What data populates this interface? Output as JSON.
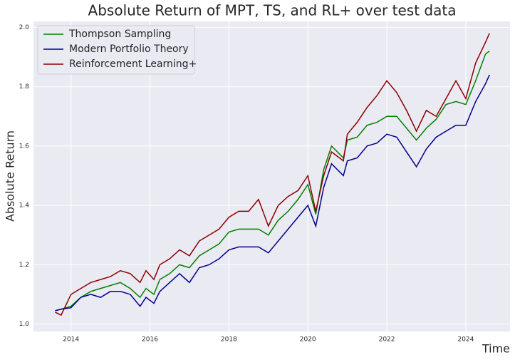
{
  "chart_data": {
    "type": "line",
    "title": "Absolute Return of MPT, TS, and RL+ over test data",
    "x_label": "Time",
    "y_label": "Absolute Return",
    "x": [
      2013.6,
      2013.75,
      2014.0,
      2014.25,
      2014.5,
      2014.75,
      2015.0,
      2015.25,
      2015.5,
      2015.75,
      2015.9,
      2016.1,
      2016.25,
      2016.5,
      2016.75,
      2017.0,
      2017.25,
      2017.5,
      2017.75,
      2018.0,
      2018.25,
      2018.5,
      2018.75,
      2019.0,
      2019.25,
      2019.5,
      2019.75,
      2020.0,
      2020.2,
      2020.4,
      2020.6,
      2020.9,
      2021.0,
      2021.25,
      2021.5,
      2021.75,
      2022.0,
      2022.25,
      2022.5,
      2022.75,
      2023.0,
      2023.25,
      2023.5,
      2023.75,
      2024.0,
      2024.25,
      2024.5,
      2024.6
    ],
    "series": [
      {
        "name": "Thompson Sampling",
        "color": "#008000",
        "values": [
          1.045,
          1.05,
          1.06,
          1.09,
          1.11,
          1.12,
          1.13,
          1.14,
          1.12,
          1.09,
          1.12,
          1.1,
          1.15,
          1.17,
          1.2,
          1.19,
          1.23,
          1.25,
          1.27,
          1.31,
          1.32,
          1.32,
          1.32,
          1.3,
          1.35,
          1.38,
          1.42,
          1.47,
          1.37,
          1.52,
          1.6,
          1.56,
          1.62,
          1.63,
          1.67,
          1.68,
          1.7,
          1.7,
          1.66,
          1.62,
          1.66,
          1.69,
          1.74,
          1.75,
          1.74,
          1.82,
          1.91,
          1.92
        ]
      },
      {
        "name": "Modern Portfolio Theory",
        "color": "#00008b",
        "values": [
          1.045,
          1.05,
          1.055,
          1.09,
          1.1,
          1.09,
          1.11,
          1.11,
          1.1,
          1.06,
          1.09,
          1.07,
          1.11,
          1.14,
          1.17,
          1.14,
          1.19,
          1.2,
          1.22,
          1.25,
          1.26,
          1.26,
          1.26,
          1.24,
          1.28,
          1.32,
          1.36,
          1.4,
          1.33,
          1.46,
          1.54,
          1.5,
          1.55,
          1.56,
          1.6,
          1.61,
          1.64,
          1.63,
          1.58,
          1.53,
          1.59,
          1.63,
          1.65,
          1.67,
          1.67,
          1.75,
          1.81,
          1.84
        ]
      },
      {
        "name": "Reinforcement Learning+",
        "color": "#8b0000",
        "values": [
          1.04,
          1.03,
          1.1,
          1.12,
          1.14,
          1.15,
          1.16,
          1.18,
          1.17,
          1.14,
          1.18,
          1.15,
          1.2,
          1.22,
          1.25,
          1.23,
          1.28,
          1.3,
          1.32,
          1.36,
          1.38,
          1.38,
          1.42,
          1.33,
          1.4,
          1.43,
          1.45,
          1.5,
          1.38,
          1.5,
          1.58,
          1.55,
          1.64,
          1.68,
          1.73,
          1.77,
          1.82,
          1.78,
          1.72,
          1.65,
          1.72,
          1.7,
          1.76,
          1.82,
          1.76,
          1.88,
          1.95,
          1.98
        ]
      }
    ],
    "xlim": [
      2013.05,
      2025.12
    ],
    "xticks": [
      2014,
      2016,
      2018,
      2020,
      2022,
      2024
    ],
    "ylim": [
      0.975,
      2.02
    ],
    "yticks": [
      {
        "value": 1.0,
        "label": "1.0"
      },
      1.2,
      1.4,
      1.6,
      1.8,
      {
        "value": 2.0,
        "label": "2.0"
      }
    ],
    "grid": true,
    "legend": "upper left"
  }
}
